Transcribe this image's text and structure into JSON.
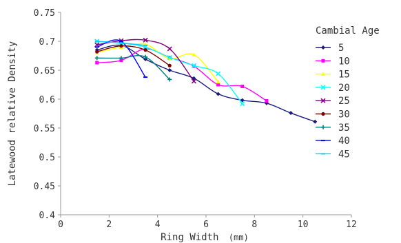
{
  "chart_data": {
    "type": "line",
    "title": "",
    "xlabel": "Ring Width",
    "xlabel_unit": "(mm)",
    "ylabel": "Latewood relative Density",
    "xlim": [
      0,
      12
    ],
    "ylim": [
      0.4,
      0.75
    ],
    "x_ticks": [
      "0",
      "2",
      "4",
      "6",
      "8",
      "10",
      "12"
    ],
    "y_ticks": [
      "0.4",
      "0.45",
      "0.5",
      "0.55",
      "0.6",
      "0.65",
      "0.7",
      "0.75"
    ],
    "grid": false,
    "legend": {
      "title": "Cambial Age",
      "position": "right"
    },
    "series": [
      {
        "name": "5",
        "color": "#1a1a80",
        "marker": "diamond",
        "x": [
          1.5,
          2.5,
          3.5,
          4.5,
          5.5,
          6.5,
          7.5,
          8.5,
          9.5,
          10.5
        ],
        "y": [
          0.685,
          0.693,
          0.669,
          0.65,
          0.636,
          0.609,
          0.598,
          0.593,
          0.576,
          0.561
        ]
      },
      {
        "name": "10",
        "color": "#ff00ff",
        "marker": "square",
        "x": [
          1.5,
          2.5,
          3.5,
          4.5,
          5.5,
          6.5,
          7.5,
          8.5
        ],
        "y": [
          0.663,
          0.667,
          0.687,
          0.672,
          0.657,
          0.625,
          0.622,
          0.597
        ]
      },
      {
        "name": "15",
        "color": "#ffff00",
        "marker": "triangle",
        "x": [
          1.5,
          2.5,
          3.5,
          4.5,
          5.5,
          6.5
        ],
        "y": [
          0.681,
          0.69,
          0.695,
          0.67,
          0.677,
          0.63
        ]
      },
      {
        "name": "20",
        "color": "#00ffff",
        "marker": "x",
        "x": [
          1.5,
          2.5,
          3.5,
          4.5,
          5.5,
          6.5,
          7.5
        ],
        "y": [
          0.7,
          0.697,
          0.69,
          0.672,
          0.658,
          0.644,
          0.592
        ]
      },
      {
        "name": "25",
        "color": "#800080",
        "marker": "x",
        "x": [
          1.5,
          2.5,
          3.5,
          4.5,
          5.5
        ],
        "y": [
          0.694,
          0.701,
          0.702,
          0.687,
          0.631
        ]
      },
      {
        "name": "30",
        "color": "#800000",
        "marker": "circle",
        "x": [
          1.5,
          2.5,
          3.5,
          4.5
        ],
        "y": [
          0.682,
          0.692,
          0.685,
          0.658
        ]
      },
      {
        "name": "35",
        "color": "#008080",
        "marker": "plus",
        "x": [
          1.5,
          2.5,
          3.5,
          4.5
        ],
        "y": [
          0.671,
          0.671,
          0.673,
          0.634
        ]
      },
      {
        "name": "40",
        "color": "#0000ff",
        "marker": "dash",
        "x": [
          1.5,
          2.5,
          3.5
        ],
        "y": [
          0.69,
          0.7,
          0.638
        ]
      },
      {
        "name": "45",
        "color": "#00ccff",
        "marker": "dash",
        "x": [
          1.5,
          2.5,
          3.5
        ],
        "y": [
          0.7,
          0.697,
          0.693
        ]
      }
    ]
  }
}
